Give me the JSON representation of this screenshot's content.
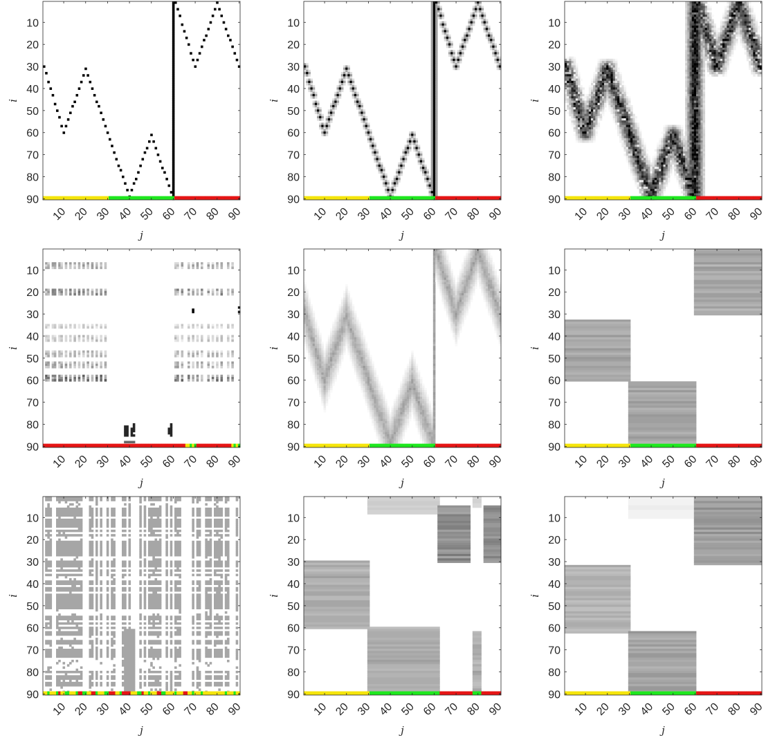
{
  "figure": {
    "grid": {
      "rows": 3,
      "cols": 3
    },
    "background": "#ffffff",
    "axis_color": "#262626",
    "colormap": "gray-reversed",
    "strip_colors": {
      "Y": "#f5e50b",
      "G": "#1ee81e",
      "R": "#e61515"
    }
  },
  "chart_data": [
    {
      "type": "heatmap",
      "panel": 1,
      "render": "zigzag",
      "blur": 0,
      "path": [
        [
          1,
          30
        ],
        [
          10,
          60
        ],
        [
          20,
          31
        ],
        [
          30,
          60
        ],
        [
          40,
          89
        ],
        [
          50,
          61
        ],
        [
          60,
          90
        ],
        [
          61,
          1
        ],
        [
          70,
          30
        ],
        [
          80,
          1
        ],
        [
          90,
          30
        ]
      ],
      "strip": "Y30G30R30",
      "xlabel": "j",
      "ylabel": "i",
      "xlim": [
        0.5,
        90.5
      ],
      "ylim": [
        0.5,
        90.5
      ],
      "y_reversed": true,
      "xticks": [
        "10",
        "20",
        "30",
        "40",
        "50",
        "60",
        "70",
        "80",
        "90"
      ],
      "yticks": [
        "10",
        "20",
        "30",
        "40",
        "50",
        "60",
        "70",
        "80",
        "90"
      ]
    },
    {
      "type": "heatmap",
      "panel": 2,
      "render": "zigzag",
      "blur": 1,
      "path": [
        [
          1,
          30
        ],
        [
          10,
          60
        ],
        [
          20,
          31
        ],
        [
          30,
          60
        ],
        [
          40,
          89
        ],
        [
          50,
          61
        ],
        [
          60,
          90
        ],
        [
          61,
          1
        ],
        [
          70,
          30
        ],
        [
          80,
          1
        ],
        [
          90,
          30
        ]
      ],
      "strip": "Y30G30R30",
      "xlabel": "j",
      "ylabel": "i",
      "xlim": [
        0.5,
        90.5
      ],
      "ylim": [
        0.5,
        90.5
      ],
      "y_reversed": true,
      "xticks": [
        "10",
        "20",
        "30",
        "40",
        "50",
        "60",
        "70",
        "80",
        "90"
      ],
      "yticks": [
        "10",
        "20",
        "30",
        "40",
        "50",
        "60",
        "70",
        "80",
        "90"
      ]
    },
    {
      "type": "heatmap",
      "panel": 3,
      "render": "zigzag_noisy",
      "blur": 4,
      "path": [
        [
          1,
          30
        ],
        [
          10,
          60
        ],
        [
          20,
          31
        ],
        [
          30,
          60
        ],
        [
          40,
          89
        ],
        [
          50,
          61
        ],
        [
          60,
          90
        ],
        [
          61,
          1
        ],
        [
          70,
          30
        ],
        [
          80,
          1
        ],
        [
          90,
          30
        ]
      ],
      "strip": "Y30G30R30",
      "xlabel": "j",
      "ylabel": "i",
      "xlim": [
        0.5,
        90.5
      ],
      "ylim": [
        0.5,
        90.5
      ],
      "y_reversed": true,
      "xticks": [
        "10",
        "20",
        "30",
        "40",
        "50",
        "60",
        "70",
        "80",
        "90"
      ],
      "yticks": [
        "10",
        "20",
        "30",
        "40",
        "50",
        "60",
        "70",
        "80",
        "90"
      ]
    },
    {
      "type": "heatmap",
      "panel": 4,
      "render": "sparse_stripes",
      "strip": "R65Y2G1Y1G1R16Y1G1Y1G1R1",
      "xlabel": "j",
      "ylabel": "i",
      "xlim": [
        0.5,
        90.5
      ],
      "ylim": [
        0.5,
        90.5
      ],
      "y_reversed": true,
      "xticks": [
        "10",
        "20",
        "30",
        "40",
        "50",
        "60",
        "70",
        "80",
        "90"
      ],
      "yticks": [
        "10",
        "20",
        "30",
        "40",
        "50",
        "60",
        "70",
        "80",
        "90"
      ]
    },
    {
      "type": "heatmap",
      "panel": 5,
      "render": "wide_zigzag",
      "width": 14,
      "level": 0.35,
      "path": [
        [
          1,
          30
        ],
        [
          10,
          60
        ],
        [
          20,
          31
        ],
        [
          30,
          60
        ],
        [
          40,
          89
        ],
        [
          50,
          61
        ],
        [
          60,
          90
        ],
        [
          61,
          1
        ],
        [
          70,
          30
        ],
        [
          80,
          1
        ],
        [
          90,
          30
        ]
      ],
      "strip": "Y30G30R30",
      "xlabel": "j",
      "ylabel": "i",
      "xlim": [
        0.5,
        90.5
      ],
      "ylim": [
        0.5,
        90.5
      ],
      "y_reversed": true,
      "xticks": [
        "10",
        "20",
        "30",
        "40",
        "50",
        "60",
        "70",
        "80",
        "90"
      ],
      "yticks": [
        "10",
        "20",
        "30",
        "40",
        "50",
        "60",
        "70",
        "80",
        "90"
      ]
    },
    {
      "type": "heatmap",
      "panel": 6,
      "render": "blocks",
      "blocks": [
        {
          "j": [
            1,
            30
          ],
          "i": [
            33,
            60
          ],
          "level": 0.35
        },
        {
          "j": [
            30,
            60
          ],
          "i": [
            61,
            89
          ],
          "level": 0.35
        },
        {
          "j": [
            60,
            90
          ],
          "i": [
            1,
            30
          ],
          "level": 0.35
        }
      ],
      "strip": "Y30G30R30",
      "xlabel": "j",
      "ylabel": "i",
      "xlim": [
        0.5,
        90.5
      ],
      "ylim": [
        0.5,
        90.5
      ],
      "y_reversed": true,
      "xticks": [
        "10",
        "20",
        "30",
        "40",
        "50",
        "60",
        "70",
        "80",
        "90"
      ],
      "yticks": [
        "10",
        "20",
        "30",
        "40",
        "50",
        "60",
        "70",
        "80",
        "90"
      ]
    },
    {
      "type": "heatmap",
      "panel": 7,
      "render": "checker",
      "strip": "Y2G1Y3G1R1Y2G2Y3G1R2G2Y2R2G1Y3G2R3Y2G1R4Y3G2R1Y2G1Y3R2G2Y4G1Y3R2Y2G1Y3G1Y10G1Y3G1Y5",
      "xlabel": "j",
      "ylabel": "i",
      "xlim": [
        0.5,
        90.5
      ],
      "ylim": [
        0.5,
        90.5
      ],
      "y_reversed": true,
      "xticks": [
        "10",
        "20",
        "30",
        "40",
        "50",
        "60",
        "70",
        "80",
        "90"
      ],
      "yticks": [
        "10",
        "20",
        "30",
        "40",
        "50",
        "60",
        "70",
        "80",
        "90"
      ]
    },
    {
      "type": "heatmap",
      "panel": 8,
      "render": "blocks",
      "blocks": [
        {
          "j": [
            1,
            30
          ],
          "i": [
            30,
            60
          ],
          "level": 0.32
        },
        {
          "j": [
            30,
            62
          ],
          "i": [
            60,
            89
          ],
          "level": 0.32
        },
        {
          "j": [
            30,
            62
          ],
          "i": [
            1,
            8
          ],
          "level": 0.18
        },
        {
          "j": [
            62,
            76
          ],
          "i": [
            5,
            30
          ],
          "level": 0.45
        },
        {
          "j": [
            78,
            81
          ],
          "i": [
            62,
            89
          ],
          "level": 0.32
        },
        {
          "j": [
            78,
            81
          ],
          "i": [
            1,
            5
          ],
          "level": 0.18
        },
        {
          "j": [
            83,
            90
          ],
          "i": [
            5,
            30
          ],
          "level": 0.45
        }
      ],
      "strip": "Y30G32R15G4R9",
      "xlabel": "j",
      "ylabel": "i",
      "xlim": [
        0.5,
        90.5
      ],
      "ylim": [
        0.5,
        90.5
      ],
      "y_reversed": true,
      "xticks": [
        "10",
        "20",
        "30",
        "40",
        "50",
        "60",
        "70",
        "80",
        "90"
      ],
      "yticks": [
        "10",
        "20",
        "30",
        "40",
        "50",
        "60",
        "70",
        "80",
        "90"
      ]
    },
    {
      "type": "heatmap",
      "panel": 9,
      "render": "blocks",
      "blocks": [
        {
          "j": [
            1,
            30
          ],
          "i": [
            32,
            62
          ],
          "level": 0.3
        },
        {
          "j": [
            30,
            60
          ],
          "i": [
            62,
            89
          ],
          "level": 0.36
        },
        {
          "j": [
            30,
            60
          ],
          "i": [
            1,
            10
          ],
          "level": 0.06
        },
        {
          "j": [
            60,
            90
          ],
          "i": [
            1,
            31
          ],
          "level": 0.4
        }
      ],
      "strip": "Y30G30R30",
      "xlabel": "j",
      "ylabel": "i",
      "xlim": [
        0.5,
        90.5
      ],
      "ylim": [
        0.5,
        90.5
      ],
      "y_reversed": true,
      "xticks": [
        "10",
        "20",
        "30",
        "40",
        "50",
        "60",
        "70",
        "80",
        "90"
      ],
      "yticks": [
        "10",
        "20",
        "30",
        "40",
        "50",
        "60",
        "70",
        "80",
        "90"
      ]
    }
  ]
}
